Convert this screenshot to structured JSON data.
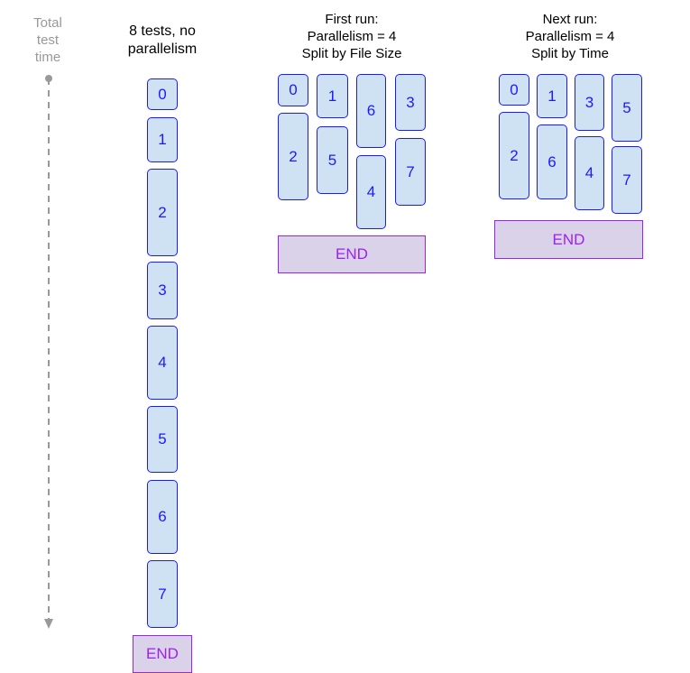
{
  "axis": {
    "label_lines": [
      "Total",
      "test",
      "time"
    ]
  },
  "columns": [
    {
      "title_lines": [
        "8 tests, no",
        "parallelism"
      ],
      "tests": [
        "0",
        "1",
        "2",
        "3",
        "4",
        "5",
        "6",
        "7"
      ],
      "end_label": "END"
    },
    {
      "title_lines": [
        "First run:",
        "Parallelism = 4",
        "Split by File Size"
      ],
      "tests": [
        "0",
        "1",
        "6",
        "3",
        "2",
        "5",
        "4",
        "7"
      ],
      "end_label": "END"
    },
    {
      "title_lines": [
        "Next run:",
        "Parallelism = 4",
        "Split by Time"
      ],
      "tests": [
        "0",
        "1",
        "3",
        "5",
        "2",
        "6",
        "4",
        "7"
      ],
      "end_label": "END"
    }
  ],
  "colors": {
    "test_fill": "#cfe2f3",
    "test_border": "#1a1aff",
    "end_fill": "#d9d2e9",
    "end_border": "#a020f0",
    "axis": "#999999"
  }
}
